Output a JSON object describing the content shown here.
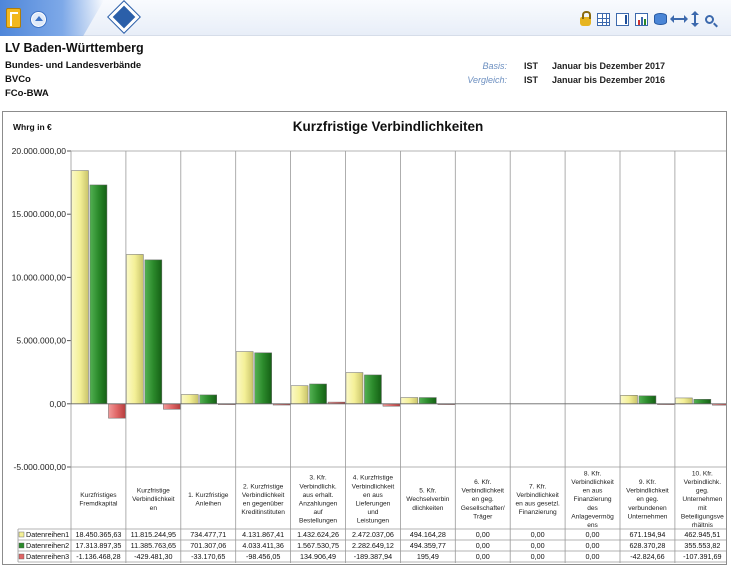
{
  "header": {
    "title": "LV Baden-Württemberg",
    "line1": "Bundes- und Landesverbände",
    "line2": "BVCo",
    "line3": "FCo-BWA",
    "basis_label": "Basis:",
    "basis_type": "IST",
    "basis_period": "Januar bis Dezember 2017",
    "vergleich_label": "Vergleich:",
    "vergleich_type": "IST",
    "vergleich_period": "Januar bis Dezember 2016"
  },
  "toolbar": {
    "icons": [
      "app-logo-icon",
      "home-icon",
      "navigate-icon",
      "lock-icon",
      "table-icon",
      "export-icon",
      "chart-icon",
      "database-icon",
      "swap-horizontal-icon",
      "swap-vertical-icon",
      "zoom-icon"
    ]
  },
  "colors": {
    "series1": "#f4f097",
    "series2": "#2b8a2b",
    "series3": "#e06666"
  },
  "chart_data": {
    "type": "bar",
    "title": "Kurzfristige Verbindlichkeiten",
    "unit_label": "Whrg in €",
    "ylim": [
      -5000000,
      20000000
    ],
    "y_ticks": [
      "20.000.000,00",
      "15.000.000,00",
      "10.000.000,00",
      "5.000.000,00",
      "0,00",
      "-5.000.000,00"
    ],
    "categories": [
      "Kurzfristiges Fremdkapital",
      "Kurzfristige Verbindlichkeiten",
      "1. Kurzfristige Anleihen",
      "2. Kurzfristige Verbindlichkeiten gegenüber Kreditinstituten",
      "3. Kfr. Verbindlichk. aus erhalt. Anzahlungen auf Bestellungen",
      "4. Kurzfristige Verbindlichkeiten aus Lieferungen und Leistungen",
      "5. Kfr. Wechselverbindlichkeiten",
      "6. Kfr. Verbindlichkeiten geg. Gesellschafter/ Träger",
      "7. Kfr. Verbindlichkeiten aus gesetzl. Finanzierung",
      "8. Kfr. Verbindlichkeiten aus Finanzierung des Anlagevermögens",
      "9. Kfr. Verbindlichkeiten geg. verbundenen Unternehmen",
      "10. Kfr. Verbindlichk. geg. Unternehmen mit Beteiligungsverhältnis"
    ],
    "category_lines": [
      [
        "Kurzfristiges",
        "Fremdkapital"
      ],
      [
        "Kurzfristige",
        "Verbindlichkeit",
        "en"
      ],
      [
        "1. Kurzfristige",
        "Anleihen"
      ],
      [
        "2. Kurzfristige",
        "Verbindlichkeit",
        "en gegenüber",
        "Kreditinstituten"
      ],
      [
        "3. Kfr.",
        "Verbindlichk.",
        "aus erhalt.",
        "Anzahlungen",
        "auf",
        "Bestellungen"
      ],
      [
        "4. Kurzfristige",
        "Verbindlichkeit",
        "en aus",
        "Lieferungen",
        "und",
        "Leistungen"
      ],
      [
        "5. Kfr.",
        "Wechselverbin",
        "dlichkeiten"
      ],
      [
        "6. Kfr.",
        "Verbindlichkeit",
        "en geg.",
        "Gesellschafter/",
        "Träger"
      ],
      [
        "7. Kfr.",
        "Verbindlichkeit",
        "en aus gesetzl.",
        "Finanzierung"
      ],
      [
        "8. Kfr.",
        "Verbindlichkeit",
        "en aus",
        "Finanzierung",
        "des",
        "Anlagevermög",
        "ens"
      ],
      [
        "9.  Kfr.",
        "Verbindlichkeit",
        "en geg.",
        "verbundenen",
        "Unternehmen"
      ],
      [
        "10. Kfr.",
        "Verbindlichk.",
        "geg.",
        "Unternehmen",
        "mit",
        "Beteiligungsve",
        "rhältnis"
      ]
    ],
    "series": [
      {
        "name": "Datenreihen1",
        "values": [
          18450365.63,
          11815244.95,
          734477.71,
          4131867.41,
          1432624.26,
          2472037.06,
          494164.28,
          0,
          0,
          0,
          671194.94,
          462945.51
        ],
        "labels": [
          "18.450.365,63",
          "11.815.244,95",
          "734.477,71",
          "4.131.867,41",
          "1.432.624,26",
          "2.472.037,06",
          "494.164,28",
          "0,00",
          "0,00",
          "0,00",
          "671.194,94",
          "462.945,51"
        ]
      },
      {
        "name": "Datenreihen2",
        "values": [
          17313897.35,
          11385763.65,
          701307.06,
          4033411.36,
          1567530.75,
          2282649.12,
          494359.77,
          0,
          0,
          0,
          628370.28,
          355553.82
        ],
        "labels": [
          "17.313.897,35",
          "11.385.763,65",
          "701.307,06",
          "4.033.411,36",
          "1.567.530,75",
          "2.282.649,12",
          "494.359,77",
          "0,00",
          "0,00",
          "0,00",
          "628.370,28",
          "355.553,82"
        ]
      },
      {
        "name": "Datenreihen3",
        "values": [
          -1136468.28,
          -429481.3,
          -33170.65,
          -98456.05,
          134906.49,
          -189387.94,
          195.49,
          0,
          0,
          0,
          -42824.66,
          -107391.69
        ],
        "labels": [
          "-1.136.468,28",
          "-429.481,30",
          "-33.170,65",
          "-98.456,05",
          "134.906,49",
          "-189.387,94",
          "195,49",
          "0,00",
          "0,00",
          "0,00",
          "-42.824,66",
          "-107.391,69"
        ]
      }
    ],
    "grid": false,
    "legend": "table-bottom"
  }
}
